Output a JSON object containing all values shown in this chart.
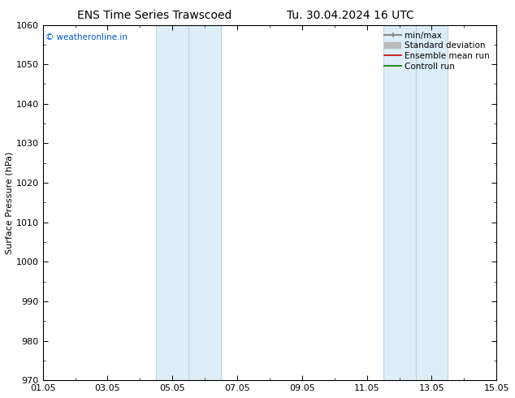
{
  "title_left": "ENS Time Series Trawscoed",
  "title_right": "Tu. 30.04.2024 16 UTC",
  "ylabel": "Surface Pressure (hPa)",
  "ylim": [
    970,
    1060
  ],
  "yticks": [
    970,
    980,
    990,
    1000,
    1010,
    1020,
    1030,
    1040,
    1050,
    1060
  ],
  "xlim_start": 0,
  "xlim_end": 14,
  "xtick_labels": [
    "01.05",
    "03.05",
    "05.05",
    "07.05",
    "09.05",
    "11.05",
    "13.05",
    "15.05"
  ],
  "xtick_positions": [
    0,
    2,
    4,
    6,
    8,
    10,
    12,
    14
  ],
  "bands": [
    {
      "xmin": 3.5,
      "xmax": 5.5,
      "divider": 4.5
    },
    {
      "xmin": 10.5,
      "xmax": 12.5,
      "divider": 11.5
    }
  ],
  "band_fill_color": "#ddeef8",
  "band_edge_color": "#b8d4e8",
  "band_divider_color": "#b8d4e8",
  "watermark": "© weatheronline.in",
  "watermark_color": "#0055cc",
  "bg_color": "#ffffff",
  "title_fontsize": 10,
  "ylabel_fontsize": 8,
  "tick_fontsize": 8,
  "legend_fontsize": 7.5,
  "legend_items": [
    {
      "label": "min/max",
      "color": "#888888",
      "lw": 1.5,
      "type": "minmax"
    },
    {
      "label": "Standard deviation",
      "color": "#bbbbbb",
      "lw": 6,
      "type": "band"
    },
    {
      "label": "Ensemble mean run",
      "color": "#cc0000",
      "lw": 1.2,
      "type": "line"
    },
    {
      "label": "Controll run",
      "color": "#007700",
      "lw": 1.2,
      "type": "line"
    }
  ]
}
